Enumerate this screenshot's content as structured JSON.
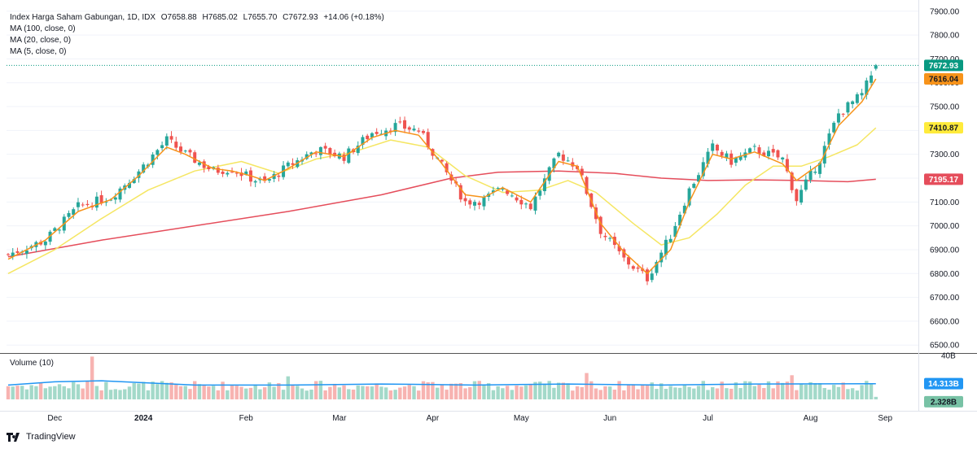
{
  "header": {
    "symbol": "Index Harga Saham Gabungan, 1D, IDX",
    "open": "O7658.88",
    "high": "H7685.02",
    "low": "L7655.70",
    "close": "C7672.93",
    "change": "+14.06 (+0.18%)",
    "ma100_label": "MA (100, close, 0)",
    "ma20_label": "MA (20, close, 0)",
    "ma5_label": "MA (5, close, 0)",
    "volume_label": "Volume (10)"
  },
  "price_axis_labels": [
    "7900.00",
    "7800.00",
    "7700.00",
    "7600.00",
    "7500.00",
    "7400.00",
    "7300.00",
    "7200.00",
    "7100.00",
    "7000.00",
    "6900.00",
    "6800.00",
    "6700.00",
    "6600.00",
    "6500.00"
  ],
  "volume_axis_label": "40B",
  "time_axis_labels": [
    "Dec",
    "2024",
    "Feb",
    "Mar",
    "Apr",
    "May",
    "Jun",
    "Jul",
    "Aug",
    "Sep"
  ],
  "markers": {
    "last_price": "7672.93",
    "ma5": "7616.04",
    "ma20": "7410.87",
    "ma100": "7195.17",
    "volume_ma": "14.313B",
    "volume": "2.328B"
  },
  "colors": {
    "up": "#26a69a",
    "down": "#ef5350",
    "ma5": "#f7931a",
    "ma20": "#f5e663",
    "ma100": "#e54d5b",
    "vol_ma": "#2196f3",
    "last_label": "#089981",
    "ma5_label": "#f7931a",
    "ma20_label": "#ffeb3b",
    "ma100_label": "#e54d5b",
    "vol_ma_label": "#2196f3",
    "vol_label": "#78c2a5"
  },
  "brand": "TradingView",
  "chart_data": {
    "type": "candlestick",
    "title": "Index Harga Saham Gabungan, 1D, IDX",
    "ylim": [
      6470,
      7930
    ],
    "volume_ylim": [
      0,
      40
    ],
    "anchors": [
      {
        "i": 0,
        "v": 6880
      },
      {
        "i": 8,
        "v": 6940
      },
      {
        "i": 15,
        "v": 7080
      },
      {
        "i": 22,
        "v": 7120
      },
      {
        "i": 28,
        "v": 7230
      },
      {
        "i": 34,
        "v": 7360
      },
      {
        "i": 38,
        "v": 7300
      },
      {
        "i": 44,
        "v": 7230
      },
      {
        "i": 48,
        "v": 7240
      },
      {
        "i": 52,
        "v": 7200
      },
      {
        "i": 55,
        "v": 7180
      },
      {
        "i": 60,
        "v": 7250
      },
      {
        "i": 66,
        "v": 7320
      },
      {
        "i": 72,
        "v": 7290
      },
      {
        "i": 78,
        "v": 7390
      },
      {
        "i": 83,
        "v": 7420
      },
      {
        "i": 88,
        "v": 7400
      },
      {
        "i": 93,
        "v": 7250
      },
      {
        "i": 98,
        "v": 7100
      },
      {
        "i": 102,
        "v": 7110
      },
      {
        "i": 106,
        "v": 7160
      },
      {
        "i": 112,
        "v": 7080
      },
      {
        "i": 118,
        "v": 7300
      },
      {
        "i": 122,
        "v": 7250
      },
      {
        "i": 127,
        "v": 6980
      },
      {
        "i": 132,
        "v": 6860
      },
      {
        "i": 137,
        "v": 6780
      },
      {
        "i": 142,
        "v": 6960
      },
      {
        "i": 146,
        "v": 7150
      },
      {
        "i": 151,
        "v": 7330
      },
      {
        "i": 155,
        "v": 7270
      },
      {
        "i": 160,
        "v": 7320
      },
      {
        "i": 166,
        "v": 7280
      },
      {
        "i": 169,
        "v": 7110
      },
      {
        "i": 174,
        "v": 7280
      },
      {
        "i": 178,
        "v": 7470
      },
      {
        "i": 183,
        "v": 7550
      },
      {
        "i": 186,
        "v": 7672.93
      }
    ],
    "ma100_points": [
      {
        "i": 0,
        "v": 6870
      },
      {
        "i": 20,
        "v": 6940
      },
      {
        "i": 40,
        "v": 7000
      },
      {
        "i": 60,
        "v": 7060
      },
      {
        "i": 80,
        "v": 7130
      },
      {
        "i": 95,
        "v": 7200
      },
      {
        "i": 105,
        "v": 7225
      },
      {
        "i": 118,
        "v": 7230
      },
      {
        "i": 130,
        "v": 7220
      },
      {
        "i": 140,
        "v": 7200
      },
      {
        "i": 150,
        "v": 7190
      },
      {
        "i": 160,
        "v": 7193
      },
      {
        "i": 170,
        "v": 7190
      },
      {
        "i": 180,
        "v": 7185
      },
      {
        "i": 186,
        "v": 7195.17
      }
    ],
    "ma20_points": [
      {
        "i": 0,
        "v": 6800
      },
      {
        "i": 10,
        "v": 6900
      },
      {
        "i": 20,
        "v": 7030
      },
      {
        "i": 30,
        "v": 7150
      },
      {
        "i": 40,
        "v": 7230
      },
      {
        "i": 50,
        "v": 7270
      },
      {
        "i": 58,
        "v": 7220
      },
      {
        "i": 66,
        "v": 7280
      },
      {
        "i": 74,
        "v": 7310
      },
      {
        "i": 82,
        "v": 7360
      },
      {
        "i": 90,
        "v": 7330
      },
      {
        "i": 98,
        "v": 7210
      },
      {
        "i": 106,
        "v": 7140
      },
      {
        "i": 114,
        "v": 7150
      },
      {
        "i": 120,
        "v": 7190
      },
      {
        "i": 126,
        "v": 7140
      },
      {
        "i": 134,
        "v": 7010
      },
      {
        "i": 140,
        "v": 6920
      },
      {
        "i": 146,
        "v": 6950
      },
      {
        "i": 152,
        "v": 7050
      },
      {
        "i": 158,
        "v": 7170
      },
      {
        "i": 164,
        "v": 7250
      },
      {
        "i": 170,
        "v": 7250
      },
      {
        "i": 176,
        "v": 7290
      },
      {
        "i": 182,
        "v": 7340
      },
      {
        "i": 186,
        "v": 7410.87
      }
    ],
    "ma5_points": [
      {
        "i": 0,
        "v": 6860
      },
      {
        "i": 8,
        "v": 6940
      },
      {
        "i": 15,
        "v": 7060
      },
      {
        "i": 22,
        "v": 7110
      },
      {
        "i": 28,
        "v": 7210
      },
      {
        "i": 34,
        "v": 7330
      },
      {
        "i": 38,
        "v": 7300
      },
      {
        "i": 44,
        "v": 7240
      },
      {
        "i": 48,
        "v": 7230
      },
      {
        "i": 52,
        "v": 7210
      },
      {
        "i": 55,
        "v": 7190
      },
      {
        "i": 60,
        "v": 7240
      },
      {
        "i": 66,
        "v": 7310
      },
      {
        "i": 72,
        "v": 7290
      },
      {
        "i": 78,
        "v": 7370
      },
      {
        "i": 83,
        "v": 7400
      },
      {
        "i": 88,
        "v": 7380
      },
      {
        "i": 93,
        "v": 7260
      },
      {
        "i": 98,
        "v": 7130
      },
      {
        "i": 102,
        "v": 7120
      },
      {
        "i": 106,
        "v": 7160
      },
      {
        "i": 112,
        "v": 7100
      },
      {
        "i": 118,
        "v": 7270
      },
      {
        "i": 122,
        "v": 7250
      },
      {
        "i": 127,
        "v": 7010
      },
      {
        "i": 132,
        "v": 6890
      },
      {
        "i": 137,
        "v": 6800
      },
      {
        "i": 142,
        "v": 6900
      },
      {
        "i": 146,
        "v": 7100
      },
      {
        "i": 151,
        "v": 7300
      },
      {
        "i": 155,
        "v": 7280
      },
      {
        "i": 160,
        "v": 7310
      },
      {
        "i": 166,
        "v": 7260
      },
      {
        "i": 169,
        "v": 7190
      },
      {
        "i": 174,
        "v": 7260
      },
      {
        "i": 178,
        "v": 7420
      },
      {
        "i": 183,
        "v": 7520
      },
      {
        "i": 186,
        "v": 7616.04
      }
    ],
    "volume_ma_points": [
      {
        "i": 0,
        "v": 13
      },
      {
        "i": 10,
        "v": 16
      },
      {
        "i": 20,
        "v": 17
      },
      {
        "i": 30,
        "v": 15
      },
      {
        "i": 40,
        "v": 13
      },
      {
        "i": 60,
        "v": 13
      },
      {
        "i": 80,
        "v": 14
      },
      {
        "i": 100,
        "v": 13
      },
      {
        "i": 120,
        "v": 14
      },
      {
        "i": 140,
        "v": 13
      },
      {
        "i": 160,
        "v": 14
      },
      {
        "i": 186,
        "v": 14.313
      }
    ],
    "volume_spikes": [
      {
        "i": 18,
        "v": 39
      },
      {
        "i": 60,
        "v": 21
      },
      {
        "i": 124,
        "v": 24
      },
      {
        "i": 168,
        "v": 22
      }
    ],
    "count": 187,
    "last_volume": 2.328
  }
}
